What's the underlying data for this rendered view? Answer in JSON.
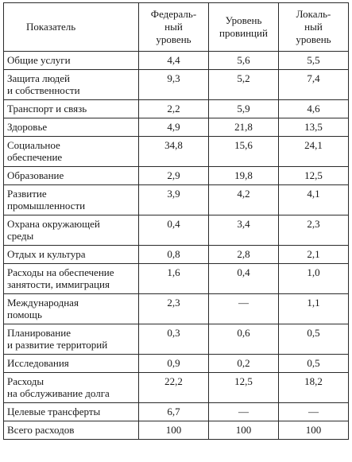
{
  "table": {
    "headers": [
      {
        "lines": [
          "Показатель"
        ]
      },
      {
        "lines": [
          "Федераль-",
          "ный",
          "уровень"
        ]
      },
      {
        "lines": [
          "Уровень",
          "провинций"
        ]
      },
      {
        "lines": [
          "Локаль-",
          "ный",
          "уровень"
        ]
      }
    ],
    "rows": [
      {
        "label": [
          "Общие услуги"
        ],
        "federal": "4,4",
        "provincial": "5,6",
        "local": "5,5"
      },
      {
        "label": [
          "Защита людей",
          "и собственности"
        ],
        "federal": "9,3",
        "provincial": "5,2",
        "local": "7,4"
      },
      {
        "label": [
          "Транспорт и связь"
        ],
        "federal": "2,2",
        "provincial": "5,9",
        "local": "4,6"
      },
      {
        "label": [
          "Здоровье"
        ],
        "federal": "4,9",
        "provincial": "21,8",
        "local": "13,5"
      },
      {
        "label": [
          "Социальное",
          "обеспечение"
        ],
        "federal": "34,8",
        "provincial": "15,6",
        "local": "24,1"
      },
      {
        "label": [
          "Образование"
        ],
        "federal": "2,9",
        "provincial": "19,8",
        "local": "12,5"
      },
      {
        "label": [
          "Развитие",
          "промышленности"
        ],
        "federal": "3,9",
        "provincial": "4,2",
        "local": "4,1"
      },
      {
        "label": [
          "Охрана окружающей",
          "среды"
        ],
        "federal": "0,4",
        "provincial": "3,4",
        "local": "2,3"
      },
      {
        "label": [
          "Отдых и культура"
        ],
        "federal": "0,8",
        "provincial": "2,8",
        "local": "2,1"
      },
      {
        "label": [
          "Расходы на обеспечение",
          "занятости, иммиграция"
        ],
        "federal": "1,6",
        "provincial": "0,4",
        "local": "1,0"
      },
      {
        "label": [
          "Международная",
          "помощь"
        ],
        "federal": "2,3",
        "provincial": "—",
        "local": "1,1"
      },
      {
        "label": [
          "Планирование",
          "и развитие территорий"
        ],
        "federal": "0,3",
        "provincial": "0,6",
        "local": "0,5"
      },
      {
        "label": [
          "Исследования"
        ],
        "federal": "0,9",
        "provincial": "0,2",
        "local": "0,5"
      },
      {
        "label": [
          "Расходы",
          "на обслуживание долга"
        ],
        "federal": "22,2",
        "provincial": "12,5",
        "local": "18,2"
      },
      {
        "label": [
          "Целевые трансферты"
        ],
        "federal": "6,7",
        "provincial": "—",
        "local": "—"
      },
      {
        "label": [
          "Всего расходов"
        ],
        "federal": "100",
        "provincial": "100",
        "local": "100"
      }
    ]
  }
}
